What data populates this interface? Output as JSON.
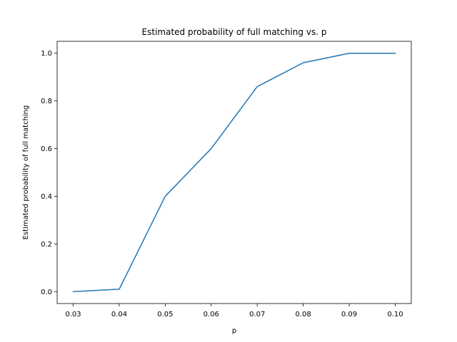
{
  "chart_data": {
    "type": "line",
    "title": "Estimated probability of full matching vs. p",
    "xlabel": "p",
    "ylabel": "Estimated probability of full matching",
    "xlim": [
      0.0265,
      0.1035
    ],
    "ylim": [
      -0.05,
      1.05
    ],
    "x_ticks": [
      0.03,
      0.04,
      0.05,
      0.06,
      0.07,
      0.08,
      0.09,
      0.1
    ],
    "x_tick_labels": [
      "0.03",
      "0.04",
      "0.05",
      "0.06",
      "0.07",
      "0.08",
      "0.09",
      "0.10"
    ],
    "y_ticks": [
      0.0,
      0.2,
      0.4,
      0.6,
      0.8,
      1.0
    ],
    "y_tick_labels": [
      "0.0",
      "0.2",
      "0.4",
      "0.6",
      "0.8",
      "1.0"
    ],
    "grid": false,
    "series": [
      {
        "color": "#1f77b4",
        "x": [
          0.03,
          0.04,
          0.05,
          0.06,
          0.07,
          0.08,
          0.09,
          0.1
        ],
        "y": [
          0.0,
          0.01,
          0.4,
          0.6,
          0.86,
          0.96,
          1.0,
          1.0
        ]
      }
    ]
  }
}
